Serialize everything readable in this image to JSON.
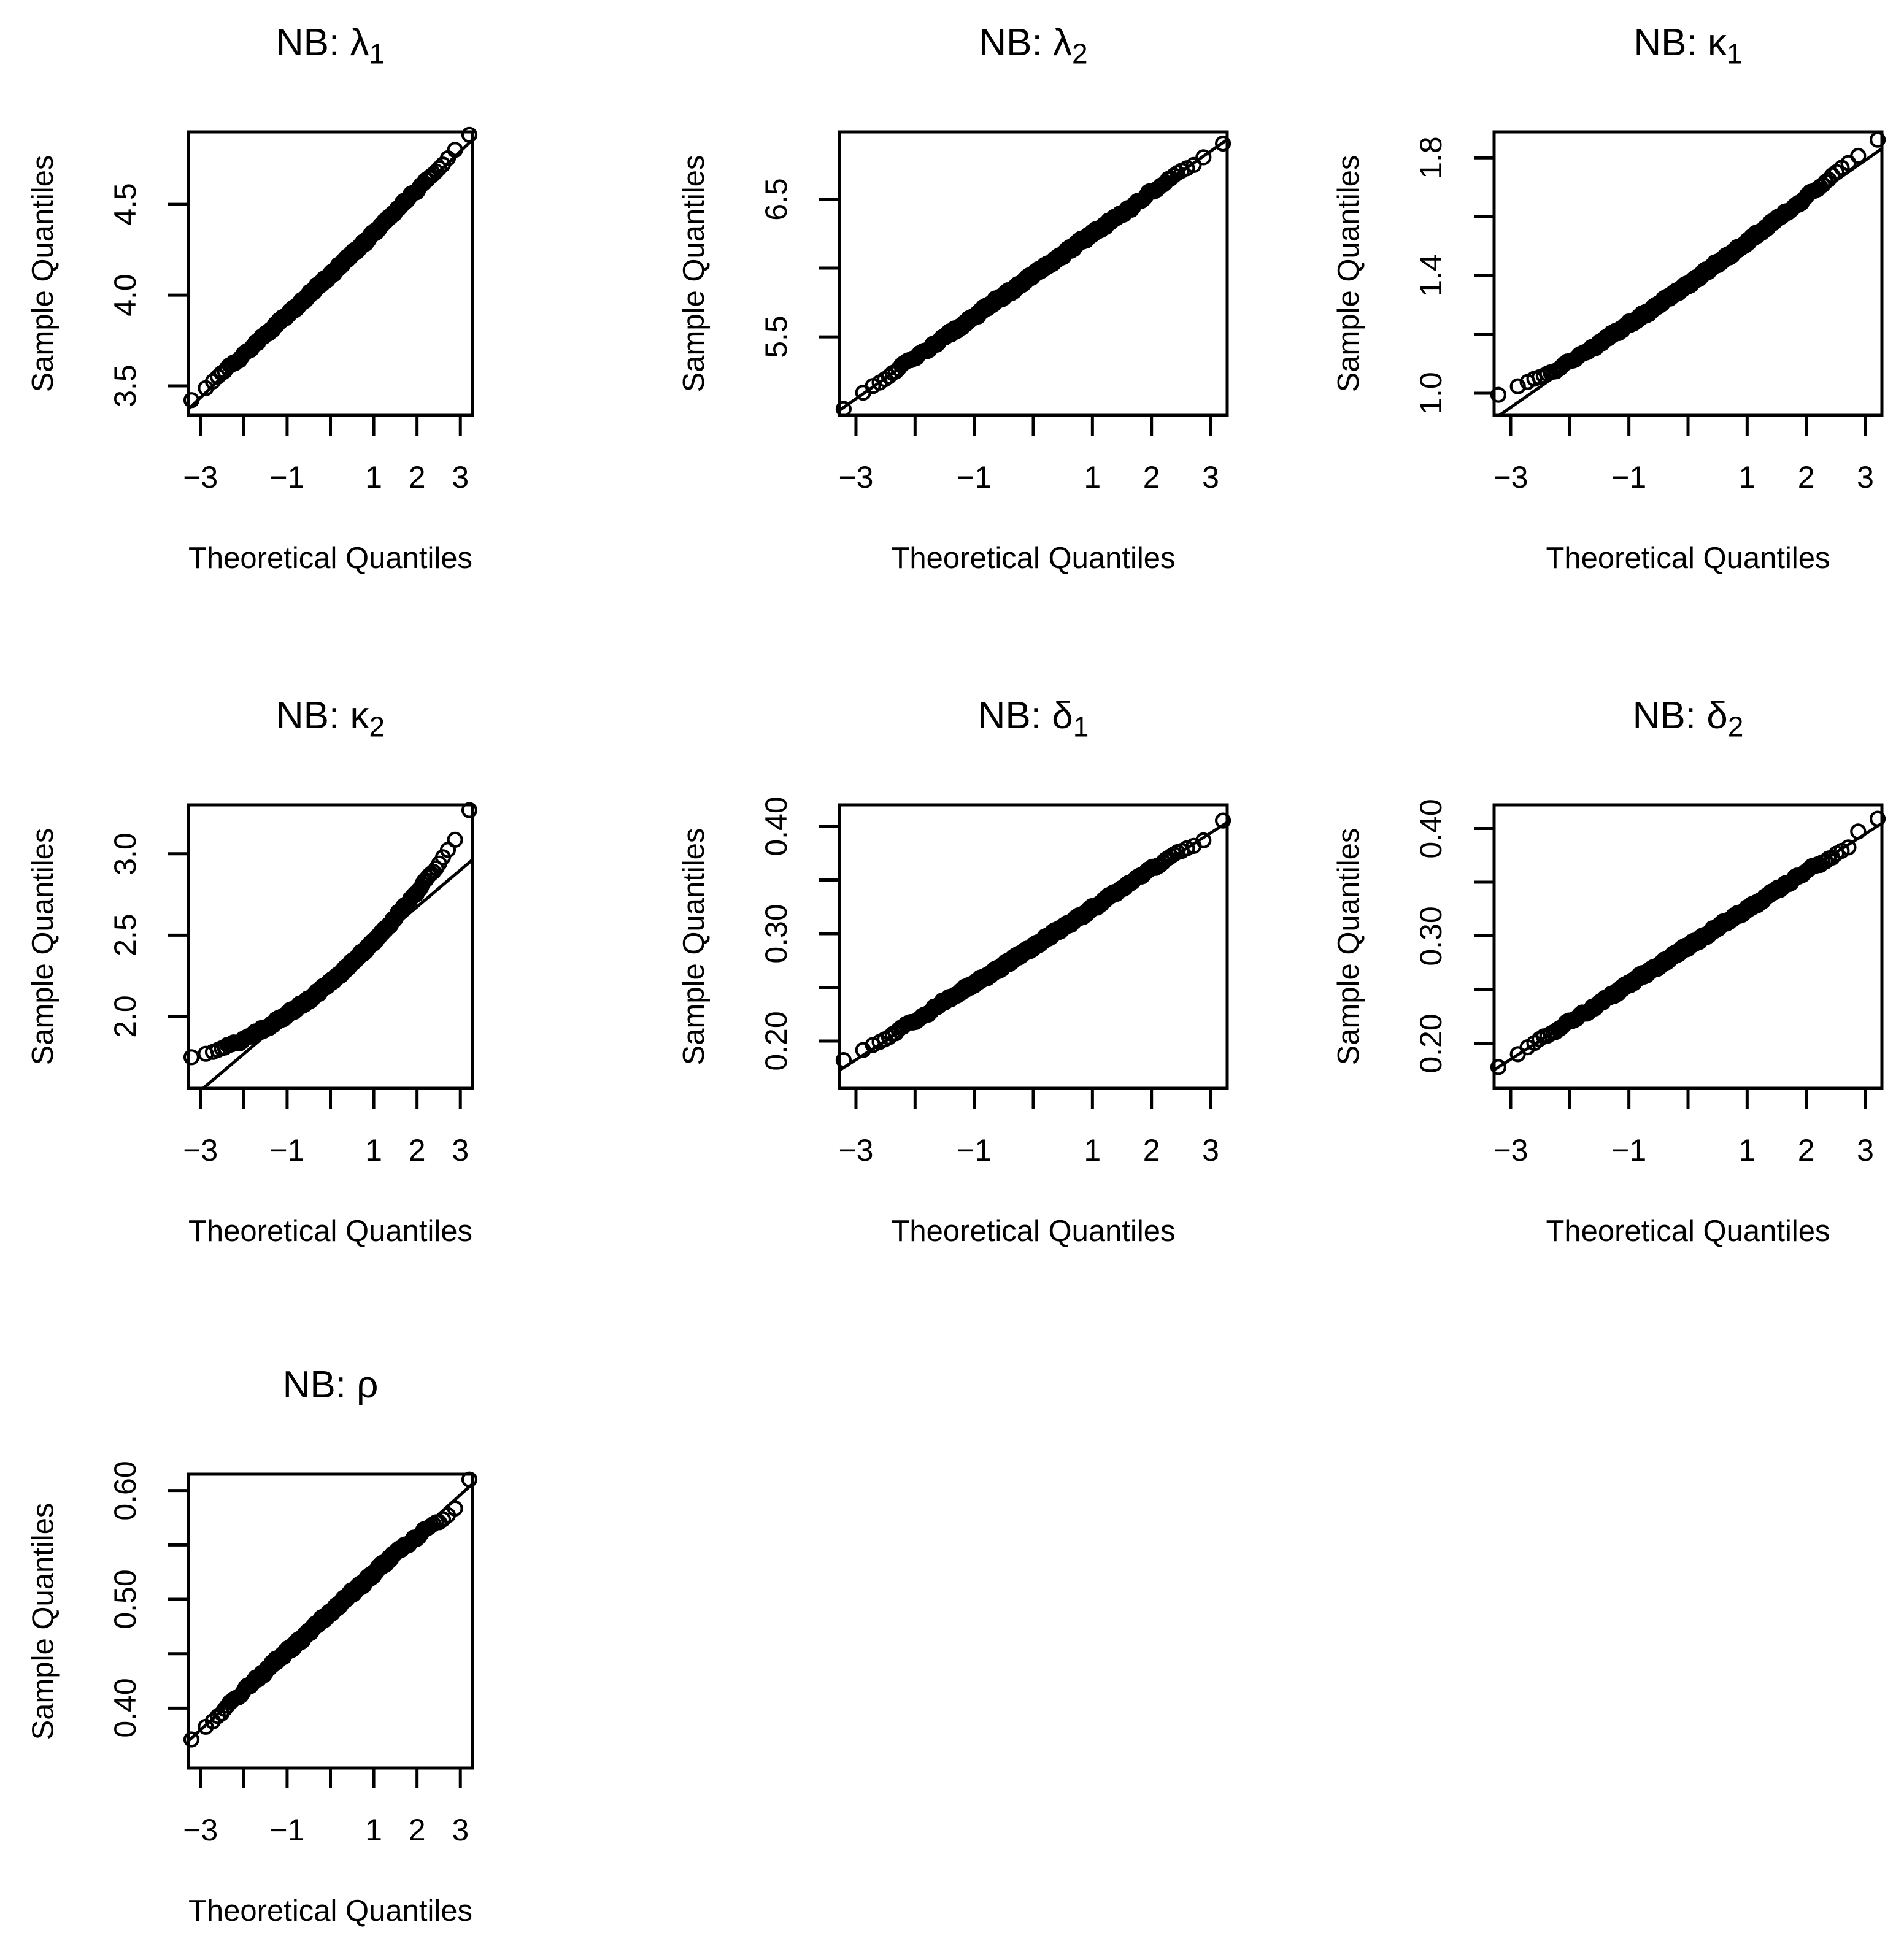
{
  "figure": {
    "background": "#ffffff",
    "ink": "#000000",
    "description": "3x3 grid of normal Q-Q plots for posterior parameter samples of an NB model; 7 panels used"
  },
  "chart_data": [
    {
      "type": "scatter",
      "qq": true,
      "position": {
        "row": 0,
        "col": 0
      },
      "title": {
        "prefix": "NB: ",
        "symbol": "λ",
        "subscript": "1"
      },
      "xlabel": "Theoretical Quantiles",
      "ylabel": "Sample Quantiles",
      "xlim": [
        -3.28,
        3.28
      ],
      "ylim": [
        3.338,
        4.899
      ],
      "x_ticks": [
        {
          "v": -3,
          "label": "−3"
        },
        {
          "v": -2,
          "label": null
        },
        {
          "v": -1,
          "label": "−1"
        },
        {
          "v": 0,
          "label": null
        },
        {
          "v": 1,
          "label": "1"
        },
        {
          "v": 2,
          "label": "2"
        },
        {
          "v": 3,
          "label": "3"
        }
      ],
      "y_ticks": [
        {
          "v": 3.5,
          "label": "3.5"
        },
        {
          "v": 4.0,
          "label": "4.0"
        },
        {
          "v": 4.5,
          "label": "4.5"
        }
      ],
      "n_points": 750,
      "sample_range": [
        3.44,
        4.86
      ],
      "model": {
        "a": 4.112,
        "b": 0.226,
        "c": 0.004,
        "devL": null,
        "devR": null,
        "outliers": [],
        "jitter": 0.012,
        "seed": 11
      }
    },
    {
      "type": "scatter",
      "qq": true,
      "position": {
        "row": 0,
        "col": 1
      },
      "title": {
        "prefix": "NB: ",
        "symbol": "λ",
        "subscript": "2"
      },
      "xlabel": "Theoretical Quantiles",
      "ylabel": "Sample Quantiles",
      "xlim": [
        -3.28,
        3.28
      ],
      "ylim": [
        4.93,
        6.99
      ],
      "x_ticks": [
        {
          "v": -3,
          "label": "−3"
        },
        {
          "v": -2,
          "label": null
        },
        {
          "v": -1,
          "label": "−1"
        },
        {
          "v": 0,
          "label": null
        },
        {
          "v": 1,
          "label": "1"
        },
        {
          "v": 2,
          "label": "2"
        },
        {
          "v": 3,
          "label": "3"
        }
      ],
      "y_ticks": [
        {
          "v": 5.5,
          "label": "5.5"
        },
        {
          "v": 6.0,
          "label": null
        },
        {
          "v": 6.5,
          "label": "6.5"
        }
      ],
      "n_points": 750,
      "sample_range": [
        5.01,
        6.9
      ],
      "model": {
        "a": 5.95,
        "b": 0.3,
        "c": 0.0,
        "devL": [
          -2.2,
          -0.02
        ],
        "devR": null,
        "outliers": [],
        "jitter": 0.018,
        "seed": 22
      }
    },
    {
      "type": "scatter",
      "qq": true,
      "position": {
        "row": 0,
        "col": 2
      },
      "title": {
        "prefix": "NB: ",
        "symbol": "κ",
        "subscript": "1"
      },
      "xlabel": "Theoretical Quantiles",
      "ylabel": "Sample Quantiles",
      "xlim": [
        -3.28,
        3.28
      ],
      "ylim": [
        0.925,
        1.888
      ],
      "x_ticks": [
        {
          "v": -3,
          "label": "−3"
        },
        {
          "v": -2,
          "label": null
        },
        {
          "v": -1,
          "label": "−1"
        },
        {
          "v": 0,
          "label": null
        },
        {
          "v": 1,
          "label": "1"
        },
        {
          "v": 2,
          "label": "2"
        },
        {
          "v": 3,
          "label": "3"
        }
      ],
      "y_ticks": [
        {
          "v": 1.0,
          "label": "1.0"
        },
        {
          "v": 1.2,
          "label": null
        },
        {
          "v": 1.4,
          "label": "1.4"
        },
        {
          "v": 1.6,
          "label": null
        },
        {
          "v": 1.8,
          "label": "1.8"
        }
      ],
      "n_points": 750,
      "sample_range": [
        1.0,
        1.85
      ],
      "model": {
        "a": 1.37,
        "b": 0.14,
        "c": 0.004,
        "devL": [
          -1.8,
          0.02
        ],
        "devR": null,
        "outliers": [],
        "jitter": 0.008,
        "seed": 33
      }
    },
    {
      "type": "scatter",
      "qq": true,
      "position": {
        "row": 1,
        "col": 0
      },
      "title": {
        "prefix": "NB: ",
        "symbol": "κ",
        "subscript": "2"
      },
      "xlabel": "Theoretical Quantiles",
      "ylabel": "Sample Quantiles",
      "xlim": [
        -3.28,
        3.28
      ],
      "ylim": [
        1.558,
        3.301
      ],
      "x_ticks": [
        {
          "v": -3,
          "label": "−3"
        },
        {
          "v": -2,
          "label": null
        },
        {
          "v": -1,
          "label": "−1"
        },
        {
          "v": 0,
          "label": null
        },
        {
          "v": 1,
          "label": "1"
        },
        {
          "v": 2,
          "label": "2"
        },
        {
          "v": 3,
          "label": "3"
        }
      ],
      "y_ticks": [
        {
          "v": 2.0,
          "label": "2.0"
        },
        {
          "v": 2.5,
          "label": "2.5"
        },
        {
          "v": 3.0,
          "label": "3.0"
        }
      ],
      "n_points": 750,
      "sample_range": [
        1.76,
        3.24
      ],
      "model": {
        "a": 2.21,
        "b": 0.226,
        "c": 0.0265,
        "devL": null,
        "devR": null,
        "outliers": [
          [
            0,
            0.05
          ]
        ],
        "jitter": 0.014,
        "seed": 44
      }
    },
    {
      "type": "scatter",
      "qq": true,
      "position": {
        "row": 1,
        "col": 1
      },
      "title": {
        "prefix": "NB: ",
        "symbol": "δ",
        "subscript": "1"
      },
      "xlabel": "Theoretical Quantiles",
      "ylabel": "Sample Quantiles",
      "xlim": [
        -3.28,
        3.28
      ],
      "ylim": [
        0.156,
        0.42
      ],
      "x_ticks": [
        {
          "v": -3,
          "label": "−3"
        },
        {
          "v": -2,
          "label": null
        },
        {
          "v": -1,
          "label": "−1"
        },
        {
          "v": 0,
          "label": null
        },
        {
          "v": 1,
          "label": "1"
        },
        {
          "v": 2,
          "label": "2"
        },
        {
          "v": 3,
          "label": "3"
        }
      ],
      "y_ticks": [
        {
          "v": 0.2,
          "label": "0.20"
        },
        {
          "v": 0.25,
          "label": null
        },
        {
          "v": 0.3,
          "label": "0.30"
        },
        {
          "v": 0.35,
          "label": null
        },
        {
          "v": 0.4,
          "label": "0.40"
        }
      ],
      "n_points": 750,
      "sample_range": [
        0.18,
        0.41
      ],
      "model": {
        "a": 0.288,
        "b": 0.0352,
        "c": 0.0005,
        "devL": null,
        "devR": [
          1.8,
          -0.004
        ],
        "outliers": [
          [
            0,
            0.009
          ]
        ],
        "jitter": 0.0022,
        "seed": 55
      }
    },
    {
      "type": "scatter",
      "qq": true,
      "position": {
        "row": 1,
        "col": 2
      },
      "title": {
        "prefix": "NB: ",
        "symbol": "δ",
        "subscript": "2"
      },
      "xlabel": "Theoretical Quantiles",
      "ylabel": "Sample Quantiles",
      "xlim": [
        -3.28,
        3.28
      ],
      "ylim": [
        0.158,
        0.422
      ],
      "x_ticks": [
        {
          "v": -3,
          "label": "−3"
        },
        {
          "v": -2,
          "label": null
        },
        {
          "v": -1,
          "label": "−1"
        },
        {
          "v": 0,
          "label": null
        },
        {
          "v": 1,
          "label": "1"
        },
        {
          "v": 2,
          "label": "2"
        },
        {
          "v": 3,
          "label": "3"
        }
      ],
      "y_ticks": [
        {
          "v": 0.2,
          "label": "0.20"
        },
        {
          "v": 0.25,
          "label": null
        },
        {
          "v": 0.3,
          "label": "0.30"
        },
        {
          "v": 0.35,
          "label": null
        },
        {
          "v": 0.4,
          "label": "0.40"
        }
      ],
      "n_points": 750,
      "sample_range": [
        0.18,
        0.41
      ],
      "model": {
        "a": 0.29,
        "b": 0.035,
        "c": 0.0,
        "devL": null,
        "devR": [
          1.6,
          -0.004
        ],
        "outliers": [
          [
            0,
            0.017
          ],
          [
            1,
            0.011
          ]
        ],
        "jitter": 0.0022,
        "seed": 66
      }
    },
    {
      "type": "scatter",
      "qq": true,
      "position": {
        "row": 2,
        "col": 0
      },
      "title": {
        "prefix": "NB: ",
        "symbol": "ρ",
        "subscript": ""
      },
      "xlabel": "Theoretical Quantiles",
      "ylabel": "Sample Quantiles",
      "xlim": [
        -3.28,
        3.28
      ],
      "ylim": [
        0.345,
        0.615
      ],
      "x_ticks": [
        {
          "v": -3,
          "label": "−3"
        },
        {
          "v": -2,
          "label": null
        },
        {
          "v": -1,
          "label": "−1"
        },
        {
          "v": 0,
          "label": null
        },
        {
          "v": 1,
          "label": "1"
        },
        {
          "v": 2,
          "label": "2"
        },
        {
          "v": 3,
          "label": "3"
        }
      ],
      "y_ticks": [
        {
          "v": 0.4,
          "label": "0.40"
        },
        {
          "v": 0.45,
          "label": null
        },
        {
          "v": 0.5,
          "label": "0.50"
        },
        {
          "v": 0.55,
          "label": null
        },
        {
          "v": 0.6,
          "label": "0.60"
        }
      ],
      "n_points": 750,
      "sample_range": [
        0.37,
        0.61
      ],
      "model": {
        "a": 0.488,
        "b": 0.036,
        "c": 0.0,
        "devL": null,
        "devR": [
          1.2,
          -0.0035
        ],
        "outliers": [
          [
            0,
            0.02
          ]
        ],
        "jitter": 0.0024,
        "seed": 77
      }
    }
  ]
}
